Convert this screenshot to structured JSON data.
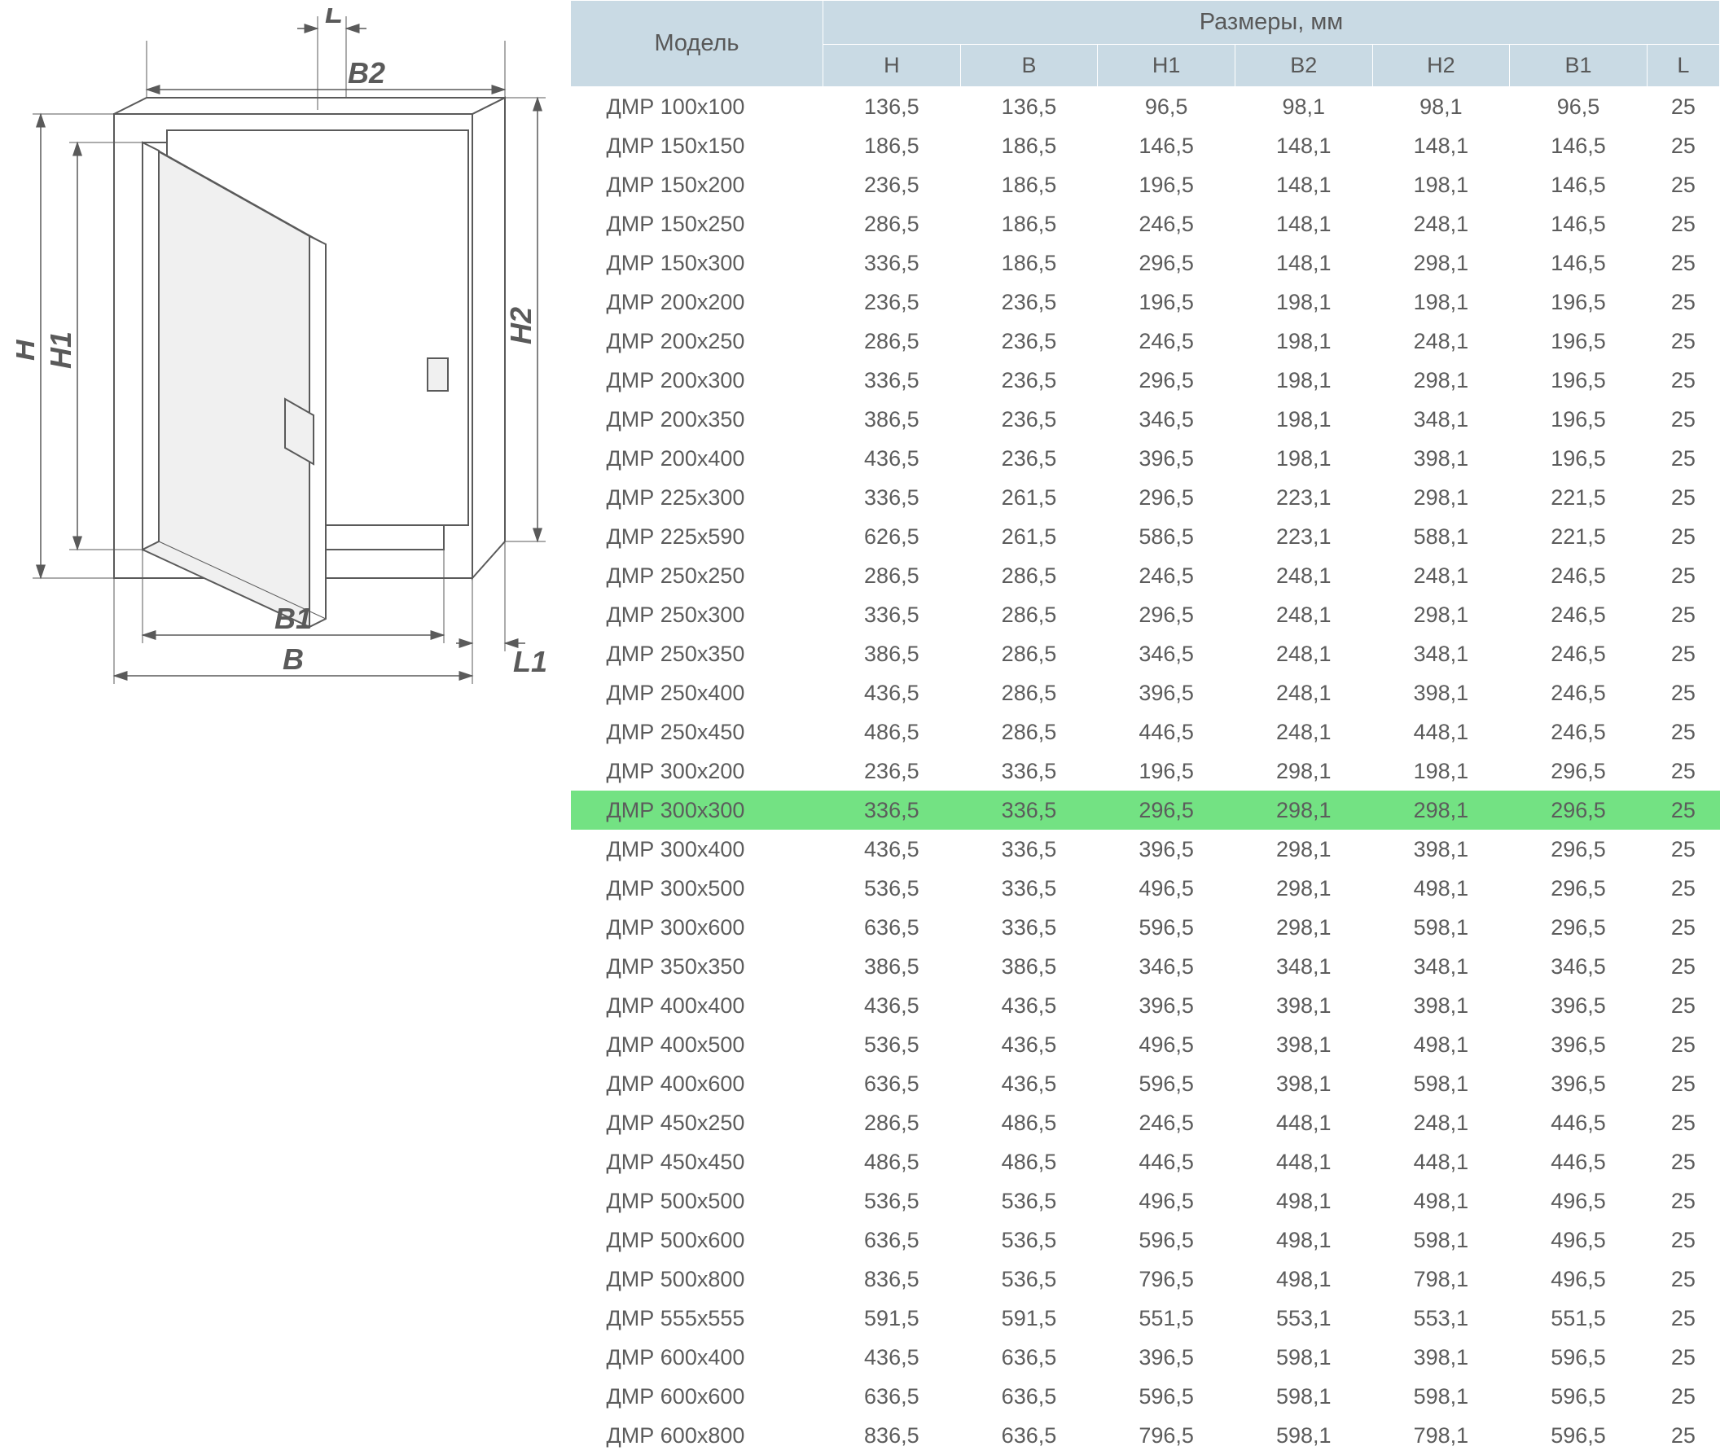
{
  "diagram": {
    "labels": {
      "H": "H",
      "H1": "H1",
      "H2": "H2",
      "B": "B",
      "B1": "B1",
      "B2": "B2",
      "L": "L",
      "L1": "L1"
    },
    "line_color": "#5a5a5a"
  },
  "table": {
    "header": {
      "model": "Модель",
      "dimensions": "Размеры, мм",
      "columns": [
        "H",
        "B",
        "H1",
        "B2",
        "H2",
        "B1",
        "L"
      ]
    },
    "highlight_row_index": 18,
    "highlight_color": "#73e283",
    "header_bg": "#c9dae4",
    "text_color": "#5c5c5c",
    "rows": [
      {
        "model": "ДМР 100х100",
        "H": "136,5",
        "B": "136,5",
        "H1": "96,5",
        "B2": "98,1",
        "H2": "98,1",
        "B1": "96,5",
        "L": "25"
      },
      {
        "model": "ДМР 150х150",
        "H": "186,5",
        "B": "186,5",
        "H1": "146,5",
        "B2": "148,1",
        "H2": "148,1",
        "B1": "146,5",
        "L": "25"
      },
      {
        "model": "ДМР 150х200",
        "H": "236,5",
        "B": "186,5",
        "H1": "196,5",
        "B2": "148,1",
        "H2": "198,1",
        "B1": "146,5",
        "L": "25"
      },
      {
        "model": "ДМР 150х250",
        "H": "286,5",
        "B": "186,5",
        "H1": "246,5",
        "B2": "148,1",
        "H2": "248,1",
        "B1": "146,5",
        "L": "25"
      },
      {
        "model": "ДМР 150х300",
        "H": "336,5",
        "B": "186,5",
        "H1": "296,5",
        "B2": "148,1",
        "H2": "298,1",
        "B1": "146,5",
        "L": "25"
      },
      {
        "model": "ДМР 200х200",
        "H": "236,5",
        "B": "236,5",
        "H1": "196,5",
        "B2": "198,1",
        "H2": "198,1",
        "B1": "196,5",
        "L": "25"
      },
      {
        "model": "ДМР 200х250",
        "H": "286,5",
        "B": "236,5",
        "H1": "246,5",
        "B2": "198,1",
        "H2": "248,1",
        "B1": "196,5",
        "L": "25"
      },
      {
        "model": "ДМР 200х300",
        "H": "336,5",
        "B": "236,5",
        "H1": "296,5",
        "B2": "198,1",
        "H2": "298,1",
        "B1": "196,5",
        "L": "25"
      },
      {
        "model": "ДМР 200х350",
        "H": "386,5",
        "B": "236,5",
        "H1": "346,5",
        "B2": "198,1",
        "H2": "348,1",
        "B1": "196,5",
        "L": "25"
      },
      {
        "model": "ДМР 200х400",
        "H": "436,5",
        "B": "236,5",
        "H1": "396,5",
        "B2": "198,1",
        "H2": "398,1",
        "B1": "196,5",
        "L": "25"
      },
      {
        "model": "ДМР 225х300",
        "H": "336,5",
        "B": "261,5",
        "H1": "296,5",
        "B2": "223,1",
        "H2": "298,1",
        "B1": "221,5",
        "L": "25"
      },
      {
        "model": "ДМР 225х590",
        "H": "626,5",
        "B": "261,5",
        "H1": "586,5",
        "B2": "223,1",
        "H2": "588,1",
        "B1": "221,5",
        "L": "25"
      },
      {
        "model": "ДМР 250х250",
        "H": "286,5",
        "B": "286,5",
        "H1": "246,5",
        "B2": "248,1",
        "H2": "248,1",
        "B1": "246,5",
        "L": "25"
      },
      {
        "model": "ДМР 250х300",
        "H": "336,5",
        "B": "286,5",
        "H1": "296,5",
        "B2": "248,1",
        "H2": "298,1",
        "B1": "246,5",
        "L": "25"
      },
      {
        "model": "ДМР 250х350",
        "H": "386,5",
        "B": "286,5",
        "H1": "346,5",
        "B2": "248,1",
        "H2": "348,1",
        "B1": "246,5",
        "L": "25"
      },
      {
        "model": "ДМР 250х400",
        "H": "436,5",
        "B": "286,5",
        "H1": "396,5",
        "B2": "248,1",
        "H2": "398,1",
        "B1": "246,5",
        "L": "25"
      },
      {
        "model": "ДМР 250х450",
        "H": "486,5",
        "B": "286,5",
        "H1": "446,5",
        "B2": "248,1",
        "H2": "448,1",
        "B1": "246,5",
        "L": "25"
      },
      {
        "model": "ДМР 300х200",
        "H": "236,5",
        "B": "336,5",
        "H1": "196,5",
        "B2": "298,1",
        "H2": "198,1",
        "B1": "296,5",
        "L": "25"
      },
      {
        "model": "ДМР 300х300",
        "H": "336,5",
        "B": "336,5",
        "H1": "296,5",
        "B2": "298,1",
        "H2": "298,1",
        "B1": "296,5",
        "L": "25"
      },
      {
        "model": "ДМР 300х400",
        "H": "436,5",
        "B": "336,5",
        "H1": "396,5",
        "B2": "298,1",
        "H2": "398,1",
        "B1": "296,5",
        "L": "25"
      },
      {
        "model": "ДМР 300х500",
        "H": "536,5",
        "B": "336,5",
        "H1": "496,5",
        "B2": "298,1",
        "H2": "498,1",
        "B1": "296,5",
        "L": "25"
      },
      {
        "model": "ДМР 300х600",
        "H": "636,5",
        "B": "336,5",
        "H1": "596,5",
        "B2": "298,1",
        "H2": "598,1",
        "B1": "296,5",
        "L": "25"
      },
      {
        "model": "ДМР 350х350",
        "H": "386,5",
        "B": "386,5",
        "H1": "346,5",
        "B2": "348,1",
        "H2": "348,1",
        "B1": "346,5",
        "L": "25"
      },
      {
        "model": "ДМР 400х400",
        "H": "436,5",
        "B": "436,5",
        "H1": "396,5",
        "B2": "398,1",
        "H2": "398,1",
        "B1": "396,5",
        "L": "25"
      },
      {
        "model": "ДМР 400х500",
        "H": "536,5",
        "B": "436,5",
        "H1": "496,5",
        "B2": "398,1",
        "H2": "498,1",
        "B1": "396,5",
        "L": "25"
      },
      {
        "model": "ДМР 400х600",
        "H": "636,5",
        "B": "436,5",
        "H1": "596,5",
        "B2": "398,1",
        "H2": "598,1",
        "B1": "396,5",
        "L": "25"
      },
      {
        "model": "ДМР 450х250",
        "H": "286,5",
        "B": "486,5",
        "H1": "246,5",
        "B2": "448,1",
        "H2": "248,1",
        "B1": "446,5",
        "L": "25"
      },
      {
        "model": "ДМР 450х450",
        "H": "486,5",
        "B": "486,5",
        "H1": "446,5",
        "B2": "448,1",
        "H2": "448,1",
        "B1": "446,5",
        "L": "25"
      },
      {
        "model": "ДМР 500х500",
        "H": "536,5",
        "B": "536,5",
        "H1": "496,5",
        "B2": "498,1",
        "H2": "498,1",
        "B1": "496,5",
        "L": "25"
      },
      {
        "model": "ДМР 500х600",
        "H": "636,5",
        "B": "536,5",
        "H1": "596,5",
        "B2": "498,1",
        "H2": "598,1",
        "B1": "496,5",
        "L": "25"
      },
      {
        "model": "ДМР 500х800",
        "H": "836,5",
        "B": "536,5",
        "H1": "796,5",
        "B2": "498,1",
        "H2": "798,1",
        "B1": "496,5",
        "L": "25"
      },
      {
        "model": "ДМР 555х555",
        "H": "591,5",
        "B": "591,5",
        "H1": "551,5",
        "B2": "553,1",
        "H2": "553,1",
        "B1": "551,5",
        "L": "25"
      },
      {
        "model": "ДМР 600х400",
        "H": "436,5",
        "B": "636,5",
        "H1": "396,5",
        "B2": "598,1",
        "H2": "398,1",
        "B1": "596,5",
        "L": "25"
      },
      {
        "model": "ДМР 600х600",
        "H": "636,5",
        "B": "636,5",
        "H1": "596,5",
        "B2": "598,1",
        "H2": "598,1",
        "B1": "596,5",
        "L": "25"
      },
      {
        "model": "ДМР 600х800",
        "H": "836,5",
        "B": "636,5",
        "H1": "796,5",
        "B2": "598,1",
        "H2": "798,1",
        "B1": "596,5",
        "L": "25"
      }
    ]
  }
}
